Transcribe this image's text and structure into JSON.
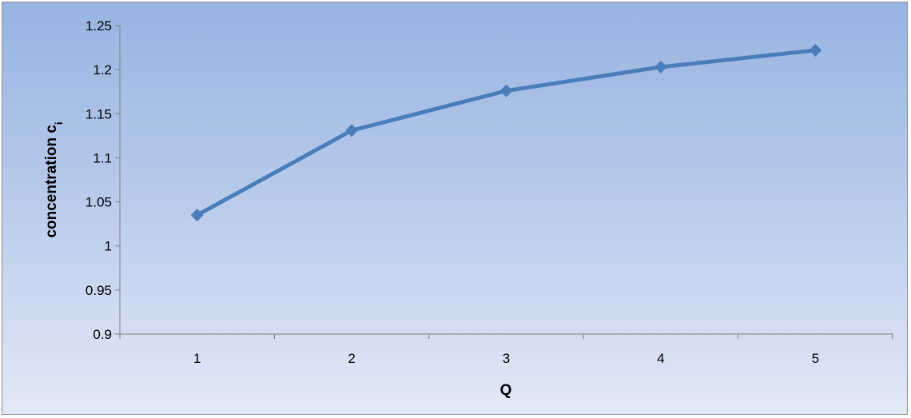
{
  "chart_data": {
    "type": "line",
    "title": "",
    "xlabel": "Q",
    "ylabel": "concentration c",
    "ylabel_subscript": "i",
    "categories": [
      "1",
      "2",
      "3",
      "4",
      "5"
    ],
    "series": [
      {
        "values": [
          1.035,
          1.131,
          1.176,
          1.203,
          1.222
        ],
        "color": "#4a7ebb"
      }
    ],
    "ylim": [
      0.9,
      1.25
    ],
    "yticks": [
      "0.9",
      "0.95",
      "1",
      "1.05",
      "1.1",
      "1.15",
      "1.2",
      "1.25"
    ],
    "grid": false,
    "legend": "none",
    "marker": "diamond"
  }
}
